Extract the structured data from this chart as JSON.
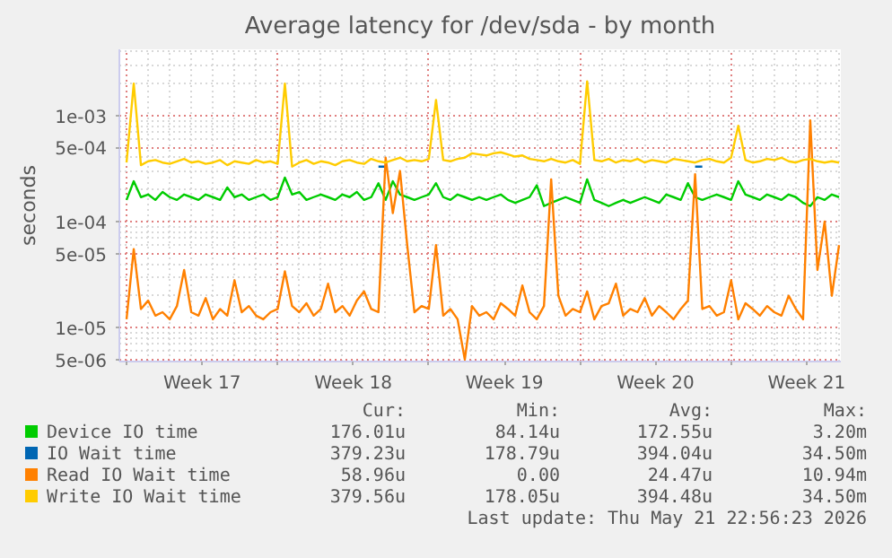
{
  "chart_data": {
    "type": "line",
    "title": "Average latency for /dev/sda - by month",
    "ylabel": "seconds",
    "x": [
      "2026-04-20T00:00",
      "2026-04-20T08:00",
      "2026-04-20T16:00",
      "2026-04-21T00:00",
      "2026-04-21T08:00",
      "2026-04-21T16:00",
      "2026-04-22T00:00",
      "2026-04-22T08:00",
      "2026-04-22T16:00",
      "2026-04-23T00:00",
      "2026-04-23T08:00",
      "2026-04-23T16:00",
      "2026-04-24T00:00",
      "2026-04-24T08:00",
      "2026-04-24T16:00",
      "2026-04-25T00:00",
      "2026-04-25T08:00",
      "2026-04-25T16:00",
      "2026-04-26T00:00",
      "2026-04-26T08:00",
      "2026-04-26T16:00",
      "2026-04-27T00:00",
      "2026-04-27T08:00",
      "2026-04-27T16:00",
      "2026-04-28T00:00",
      "2026-04-28T08:00",
      "2026-04-28T16:00",
      "2026-04-29T00:00",
      "2026-04-29T08:00",
      "2026-04-29T16:00",
      "2026-04-30T00:00",
      "2026-04-30T08:00",
      "2026-04-30T16:00",
      "2026-05-01T00:00",
      "2026-05-01T08:00",
      "2026-05-01T16:00",
      "2026-05-02T00:00",
      "2026-05-02T08:00",
      "2026-05-02T16:00",
      "2026-05-03T00:00",
      "2026-05-03T08:00",
      "2026-05-03T16:00",
      "2026-05-04T00:00",
      "2026-05-04T08:00",
      "2026-05-04T16:00",
      "2026-05-05T00:00",
      "2026-05-05T08:00",
      "2026-05-05T16:00",
      "2026-05-06T00:00",
      "2026-05-06T08:00",
      "2026-05-06T16:00",
      "2026-05-07T00:00",
      "2026-05-07T08:00",
      "2026-05-07T16:00",
      "2026-05-08T00:00",
      "2026-05-08T08:00",
      "2026-05-08T16:00",
      "2026-05-09T00:00",
      "2026-05-09T08:00",
      "2026-05-09T16:00",
      "2026-05-10T00:00",
      "2026-05-10T08:00",
      "2026-05-10T16:00",
      "2026-05-11T00:00",
      "2026-05-11T08:00",
      "2026-05-11T16:00",
      "2026-05-12T00:00",
      "2026-05-12T08:00",
      "2026-05-12T16:00",
      "2026-05-13T00:00",
      "2026-05-13T08:00",
      "2026-05-13T16:00",
      "2026-05-14T00:00",
      "2026-05-14T08:00",
      "2026-05-14T16:00",
      "2026-05-15T00:00",
      "2026-05-15T08:00",
      "2026-05-15T16:00",
      "2026-05-16T00:00",
      "2026-05-16T08:00",
      "2026-05-16T16:00",
      "2026-05-17T00:00",
      "2026-05-17T08:00",
      "2026-05-17T16:00",
      "2026-05-18T00:00",
      "2026-05-18T08:00",
      "2026-05-18T16:00",
      "2026-05-19T00:00",
      "2026-05-19T08:00",
      "2026-05-19T16:00",
      "2026-05-20T00:00",
      "2026-05-20T08:00",
      "2026-05-20T16:00",
      "2026-05-21T00:00",
      "2026-05-21T08:00",
      "2026-05-21T16:00",
      "2026-05-22T00:00",
      "2026-05-22T08:00",
      "2026-05-22T16:00",
      "2026-05-23T00:00"
    ],
    "series": [
      {
        "name": "Device IO time",
        "color": "#00cc00",
        "values": [
          0.00016,
          0.00024,
          0.00017,
          0.00018,
          0.00016,
          0.00019,
          0.00017,
          0.00016,
          0.00018,
          0.00017,
          0.00016,
          0.00018,
          0.00017,
          0.00016,
          0.00021,
          0.00017,
          0.00018,
          0.00016,
          0.00017,
          0.00018,
          0.00016,
          0.00017,
          0.00026,
          0.00018,
          0.00019,
          0.00016,
          0.00017,
          0.00018,
          0.00017,
          0.00016,
          0.00018,
          0.00017,
          0.00019,
          0.00016,
          0.00017,
          0.00023,
          0.00016,
          0.00024,
          0.00018,
          0.00017,
          0.00016,
          0.00017,
          0.00018,
          0.00023,
          0.00017,
          0.00016,
          0.00018,
          0.00017,
          0.00016,
          0.00017,
          0.00016,
          0.00017,
          0.00018,
          0.00016,
          0.00015,
          0.00016,
          0.00017,
          0.00022,
          0.00014,
          0.00015,
          0.00016,
          0.00017,
          0.00016,
          0.00015,
          0.00025,
          0.00016,
          0.00015,
          0.00014,
          0.00015,
          0.00016,
          0.00015,
          0.00016,
          0.00017,
          0.00016,
          0.00015,
          0.00018,
          0.00017,
          0.00016,
          0.00023,
          0.00017,
          0.00016,
          0.00017,
          0.00018,
          0.00017,
          0.00016,
          0.00024,
          0.00018,
          0.00017,
          0.00016,
          0.00018,
          0.00017,
          0.00016,
          0.00018,
          0.00017,
          0.00015,
          0.00014,
          0.00017,
          0.00016,
          0.00018,
          0.00017
        ]
      },
      {
        "name": "IO Wait time",
        "color": "#0066b3",
        "values": [
          null,
          null,
          null,
          null,
          null,
          null,
          null,
          null,
          null,
          null,
          null,
          null,
          null,
          null,
          null,
          null,
          null,
          null,
          null,
          null,
          null,
          null,
          null,
          null,
          null,
          null,
          null,
          null,
          null,
          null,
          null,
          null,
          null,
          null,
          null,
          0.00033,
          0.00033,
          null,
          null,
          null,
          null,
          null,
          null,
          null,
          null,
          null,
          null,
          null,
          null,
          null,
          null,
          null,
          null,
          null,
          null,
          null,
          null,
          null,
          null,
          null,
          null,
          null,
          null,
          null,
          null,
          null,
          null,
          null,
          null,
          null,
          null,
          null,
          null,
          null,
          null,
          null,
          null,
          null,
          null,
          0.00033,
          0.00033,
          null,
          null,
          null,
          null,
          null,
          null,
          null,
          null,
          null,
          null,
          null,
          null,
          null,
          null,
          null,
          null,
          null,
          null,
          null
        ]
      },
      {
        "name": "Read IO Wait time",
        "color": "#ff8000",
        "values": [
          1.2e-05,
          5.5e-05,
          1.5e-05,
          1.8e-05,
          1.3e-05,
          1.4e-05,
          1.2e-05,
          1.6e-05,
          3.5e-05,
          1.4e-05,
          1.3e-05,
          1.9e-05,
          1.2e-05,
          1.5e-05,
          1.3e-05,
          2.8e-05,
          1.4e-05,
          1.6e-05,
          1.3e-05,
          1.2e-05,
          1.4e-05,
          1.5e-05,
          3.4e-05,
          1.6e-05,
          1.4e-05,
          1.7e-05,
          1.3e-05,
          1.5e-05,
          2.6e-05,
          1.4e-05,
          1.6e-05,
          1.3e-05,
          1.8e-05,
          2.2e-05,
          1.5e-05,
          1.4e-05,
          0.0004,
          0.00012,
          0.0003,
          6e-05,
          1.4e-05,
          1.6e-05,
          1.5e-05,
          6e-05,
          1.3e-05,
          1.5e-05,
          1.2e-05,
          5e-06,
          1.6e-05,
          1.3e-05,
          1.4e-05,
          1.2e-05,
          1.7e-05,
          1.5e-05,
          1.3e-05,
          2.5e-05,
          1.4e-05,
          1.2e-05,
          1.6e-05,
          0.00025,
          2e-05,
          1.3e-05,
          1.5e-05,
          1.4e-05,
          2.2e-05,
          1.2e-05,
          1.6e-05,
          1.7e-05,
          2.6e-05,
          1.3e-05,
          1.5e-05,
          1.4e-05,
          1.9e-05,
          1.3e-05,
          1.6e-05,
          1.4e-05,
          1.2e-05,
          1.5e-05,
          1.8e-05,
          0.00028,
          1.5e-05,
          1.6e-05,
          1.3e-05,
          1.4e-05,
          2.8e-05,
          1.2e-05,
          1.7e-05,
          1.5e-05,
          1.3e-05,
          1.6e-05,
          1.4e-05,
          1.3e-05,
          2e-05,
          1.5e-05,
          1.2e-05,
          0.0009,
          3.5e-05,
          0.0001,
          2e-05,
          6e-05
        ]
      },
      {
        "name": "Write IO Wait time",
        "color": "#ffcc00",
        "values": [
          0.00036,
          0.002,
          0.00034,
          0.00037,
          0.00038,
          0.00036,
          0.00035,
          0.00037,
          0.00039,
          0.00036,
          0.00037,
          0.00035,
          0.00036,
          0.00038,
          0.00034,
          0.00037,
          0.00036,
          0.00035,
          0.00038,
          0.00036,
          0.00037,
          0.00035,
          0.002,
          0.00033,
          0.00036,
          0.00038,
          0.00035,
          0.00037,
          0.00036,
          0.00034,
          0.00037,
          0.00038,
          0.00036,
          0.00035,
          0.00039,
          0.00037,
          0.00036,
          0.00038,
          0.0004,
          0.00037,
          0.00038,
          0.00037,
          0.00039,
          0.0014,
          0.00038,
          0.00037,
          0.00039,
          0.0004,
          0.00044,
          0.00043,
          0.00042,
          0.00044,
          0.00045,
          0.00043,
          0.00041,
          0.00042,
          0.00039,
          0.00038,
          0.00037,
          0.00039,
          0.00037,
          0.00036,
          0.00038,
          0.00035,
          0.0021,
          0.00038,
          0.00037,
          0.00039,
          0.00036,
          0.00038,
          0.00037,
          0.00039,
          0.00036,
          0.00038,
          0.00037,
          0.00036,
          0.00039,
          0.00038,
          0.00037,
          0.00036,
          0.00038,
          0.00039,
          0.00037,
          0.00036,
          0.0004,
          0.0008,
          0.00038,
          0.00036,
          0.00037,
          0.00039,
          0.00038,
          0.0004,
          0.00037,
          0.00036,
          0.00038,
          0.00039,
          0.00037,
          0.00036,
          0.00037,
          0.00036
        ]
      }
    ],
    "log": true,
    "ylim": [
      4.8e-06,
      0.0042
    ],
    "yticks": [
      {
        "value": 5e-06,
        "label": "5e-06"
      },
      {
        "value": 1e-05,
        "label": "1e-05"
      },
      {
        "value": 5e-05,
        "label": "5e-05"
      },
      {
        "value": 0.0001,
        "label": "1e-04"
      },
      {
        "value": 0.0005,
        "label": "5e-04"
      },
      {
        "value": 0.001,
        "label": "1e-03"
      }
    ],
    "xlim": [
      "2026-04-19T16:00",
      "2026-05-23T02:00"
    ],
    "xticks": [
      {
        "value": "2026-04-20",
        "label": null
      },
      {
        "value": "2026-04-23T12:00",
        "label": "Week 17"
      },
      {
        "value": "2026-04-27",
        "label": null
      },
      {
        "value": "2026-04-30T12:00",
        "label": "Week 18"
      },
      {
        "value": "2026-05-04",
        "label": null
      },
      {
        "value": "2026-05-07T12:00",
        "label": "Week 19"
      },
      {
        "value": "2026-05-11",
        "label": null
      },
      {
        "value": "2026-05-14T12:00",
        "label": "Week 20"
      },
      {
        "value": "2026-05-18",
        "label": null
      },
      {
        "value": "2026-05-21T12:00",
        "label": "Week 21"
      }
    ],
    "grid": true,
    "legend": "bottom",
    "marker": "none",
    "annotations": [
      "Cur:",
      "Min:",
      "Avg:",
      "Max:",
      "176.01u",
      "84.14u",
      "172.55u",
      "3.20m",
      "379.23u",
      "178.79u",
      "394.04u",
      "34.50m",
      "58.96u",
      "0.00",
      "24.47u",
      "10.94m",
      "379.56u",
      "178.05u",
      "394.48u",
      "34.50m",
      "Last update: Thu May 21 22:56:23 2026"
    ]
  }
}
